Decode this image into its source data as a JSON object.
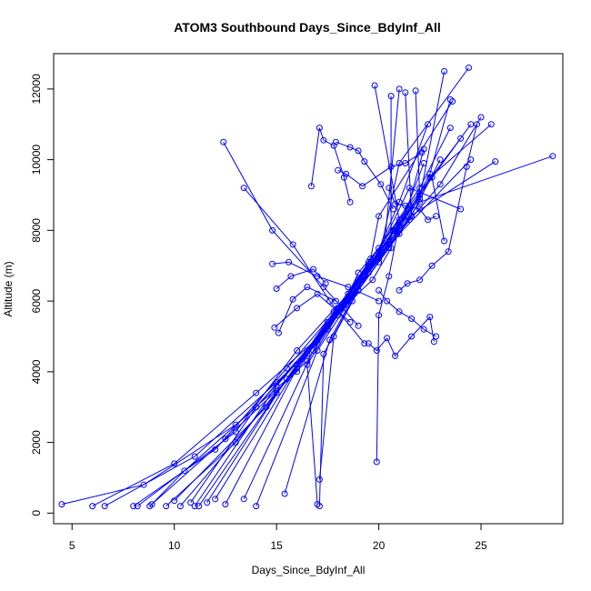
{
  "chart_data": {
    "type": "line",
    "title": "ATOM3 Southbound Days_Since_BdyInf_All",
    "xlabel": "Days_Since_BdyInf_All",
    "ylabel": "Altitude (m)",
    "xlim": [
      4.1,
      29.0
    ],
    "ylim": [
      -300,
      13000
    ],
    "xticks": [
      5,
      10,
      15,
      20,
      25
    ],
    "yticks": [
      0,
      2000,
      4000,
      6000,
      8000,
      10000,
      12000
    ],
    "grid": false,
    "legend": "none",
    "series_color": "#0000ff",
    "marker": "open-circle",
    "series": [
      {
        "x": [
          4.5,
          8.5,
          13.0,
          16.5,
          18.0,
          20.0,
          22.0,
          24.5
        ],
        "y": [
          250,
          800,
          2500,
          4300,
          5700,
          7200,
          9000,
          11000
        ]
      },
      {
        "x": [
          6.0,
          10.0,
          14.0,
          17.5,
          19.0,
          21.0,
          22.5,
          23.5
        ],
        "y": [
          200,
          1400,
          3400,
          5200,
          6600,
          8000,
          9600,
          11700
        ]
      },
      {
        "x": [
          6.6,
          11.0,
          15.0,
          17.0,
          18.5,
          20.5,
          23.0,
          25.0
        ],
        "y": [
          200,
          1600,
          3700,
          4800,
          6200,
          7600,
          9300,
          11200
        ]
      },
      {
        "x": [
          8.0,
          12.0,
          15.5,
          18.0,
          19.5,
          21.5,
          24.0
        ],
        "y": [
          200,
          1800,
          4100,
          5800,
          7100,
          8700,
          10600
        ]
      },
      {
        "x": [
          8.2,
          13.0,
          16.0,
          18.5,
          20.0,
          22.0,
          23.5
        ],
        "y": [
          200,
          2300,
          4600,
          6200,
          7500,
          9200,
          10900
        ]
      },
      {
        "x": [
          8.8,
          12.5,
          16.0,
          18.0,
          20.0,
          21.0,
          24.4
        ],
        "y": [
          200,
          2100,
          4000,
          5800,
          7200,
          9900,
          12600
        ]
      },
      {
        "x": [
          8.9,
          10.5,
          14.0,
          17.5,
          19.5,
          22.0,
          23.2
        ],
        "y": [
          250,
          1200,
          3000,
          5300,
          7000,
          8900,
          12500
        ]
      },
      {
        "x": [
          9.6,
          13.0,
          16.5,
          19.0,
          21.0,
          22.5,
          25.5
        ],
        "y": [
          200,
          2000,
          4500,
          6300,
          7900,
          9500,
          11000
        ]
      },
      {
        "x": [
          10.0,
          14.5,
          17.0,
          19.5,
          21.5,
          23.0
        ],
        "y": [
          350,
          3000,
          4900,
          6800,
          8300,
          10000
        ]
      },
      {
        "x": [
          10.3,
          15.0,
          17.5,
          19.8,
          21.0,
          22.4
        ],
        "y": [
          200,
          3400,
          5400,
          7200,
          8800,
          11000
        ]
      },
      {
        "x": [
          10.8,
          14.0,
          17.0,
          18.5,
          20.5,
          24.5
        ],
        "y": [
          300,
          3000,
          4900,
          6000,
          7600,
          10000
        ]
      },
      {
        "x": [
          11.0,
          15.0,
          18.0,
          19.0,
          21.0,
          25.7
        ],
        "y": [
          200,
          3600,
          5600,
          6600,
          8200,
          9950
        ]
      },
      {
        "x": [
          11.2,
          16.0,
          18.5,
          20.5,
          22.0,
          28.5
        ],
        "y": [
          200,
          4200,
          6100,
          7500,
          8800,
          10100
        ]
      },
      {
        "x": [
          11.6,
          15.5,
          17.8,
          20.0,
          21.5,
          24.0
        ],
        "y": [
          300,
          3800,
          5700,
          7400,
          9200,
          8600
        ]
      },
      {
        "x": [
          12.0,
          16.5,
          18.7,
          20.8,
          22.6,
          23.2
        ],
        "y": [
          400,
          4600,
          6300,
          8000,
          9500,
          7700
        ]
      },
      {
        "x": [
          12.5,
          16.0,
          18.4,
          20.0,
          21.0,
          19.8
        ],
        "y": [
          250,
          4100,
          5900,
          7100,
          8300,
          12100
        ]
      },
      {
        "x": [
          13.4,
          16.8,
          18.2,
          19.7,
          20.6,
          20.6
        ],
        "y": [
          400,
          4600,
          5800,
          6600,
          7500,
          11800
        ]
      },
      {
        "x": [
          14.0,
          17.0,
          18.8,
          20.2,
          21.6,
          21.3
        ],
        "y": [
          200,
          4600,
          6200,
          7500,
          8400,
          11900
        ]
      },
      {
        "x": [
          15.4,
          17.6,
          19.3,
          20.7,
          22.0,
          21.8
        ],
        "y": [
          550,
          4900,
          6700,
          8000,
          9000,
          11950
        ]
      },
      {
        "x": [
          17.0,
          16.5,
          18.2,
          19.0,
          20.3,
          21.0
        ],
        "y": [
          250,
          4200,
          5800,
          6800,
          7700,
          12000
        ]
      },
      {
        "x": [
          17.1,
          17.3,
          18.7,
          19.6,
          20.0,
          23.6
        ],
        "y": [
          200,
          4500,
          6000,
          7200,
          8400,
          11650
        ]
      },
      {
        "x": [
          17.1,
          17.8,
          19.0,
          20.0,
          21.4,
          22.2
        ],
        "y": [
          950,
          5000,
          6300,
          7300,
          8600,
          10300
        ]
      },
      {
        "x": [
          19.9,
          20.0,
          20.5,
          20.9,
          22.2
        ],
        "y": [
          1450,
          5600,
          6700,
          7900,
          9900
        ]
      },
      {
        "x": [
          12.4,
          14.8,
          17.3,
          19.0
        ],
        "y": [
          10500,
          8000,
          6400,
          5300
        ]
      },
      {
        "x": [
          13.4,
          15.8,
          17.6,
          19.3
        ],
        "y": [
          9200,
          7600,
          6000,
          4800
        ]
      },
      {
        "x": [
          14.8,
          15.6,
          17.0,
          18.5,
          20.0
        ],
        "y": [
          7050,
          7100,
          6700,
          6400,
          6000
        ]
      },
      {
        "x": [
          15.0,
          15.7,
          16.8,
          17.4
        ],
        "y": [
          6350,
          6700,
          6900,
          6500
        ]
      },
      {
        "x": [
          15.1,
          15.8,
          16.5,
          17.9
        ],
        "y": [
          5100,
          6050,
          6400,
          6000
        ]
      },
      {
        "x": [
          14.9,
          16.0,
          17.0,
          18.6
        ],
        "y": [
          5250,
          5800,
          6200,
          5400
        ]
      },
      {
        "x": [
          16.7,
          17.1,
          17.3,
          17.8,
          18.3,
          18.6
        ],
        "y": [
          9250,
          10900,
          10550,
          10400,
          9500,
          8800
        ]
      },
      {
        "x": [
          17.9,
          18.6,
          19.0,
          19.3,
          20.1,
          20.7
        ],
        "y": [
          10500,
          10350,
          10250,
          9950,
          9300,
          8600
        ]
      },
      {
        "x": [
          18.0,
          18.4,
          19.2,
          20.6,
          21.3,
          22.1
        ],
        "y": [
          9700,
          9600,
          9250,
          9800,
          9900,
          10200
        ]
      },
      {
        "x": [
          20.5,
          20.8,
          21.3,
          22.0,
          22.4,
          22.8
        ],
        "y": [
          9200,
          8750,
          8700,
          8600,
          8300,
          8400
        ]
      },
      {
        "x": [
          20.0,
          20.4,
          21.0,
          21.6,
          22.2,
          22.8
        ],
        "y": [
          6300,
          6000,
          5700,
          5500,
          5200,
          5000
        ]
      },
      {
        "x": [
          19.5,
          19.9,
          20.4,
          20.8,
          21.6,
          22.5,
          22.7
        ],
        "y": [
          4800,
          4600,
          4950,
          4450,
          5000,
          5550,
          4850
        ]
      },
      {
        "x": [
          21.0,
          21.4,
          22.0,
          22.6,
          23.4,
          24.3,
          24.8
        ],
        "y": [
          6300,
          6500,
          6600,
          7000,
          7400,
          9800,
          11000
        ]
      }
    ]
  }
}
